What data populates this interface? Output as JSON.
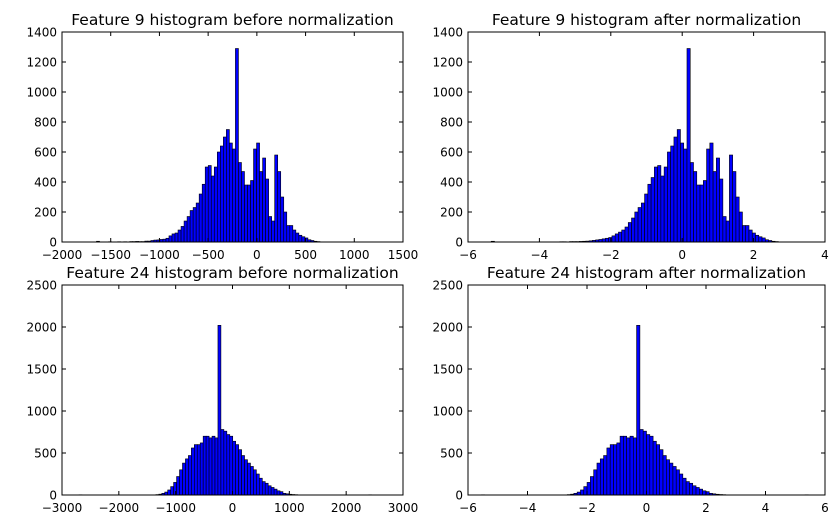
{
  "chart_data": [
    {
      "type": "bar",
      "title": "Feature 9 histogram before normalization",
      "xlim": [
        -2000,
        1500
      ],
      "ylim": [
        0,
        1400
      ],
      "xticks": [
        -2000,
        -1500,
        -1000,
        -500,
        0,
        500,
        1000,
        1500
      ],
      "yticks": [
        0,
        200,
        400,
        600,
        800,
        1000,
        1200,
        1400
      ],
      "grid": false,
      "bin_start": -1770,
      "bin_width": 31,
      "values": [
        1,
        0,
        0,
        0,
        5,
        0,
        0,
        0,
        2,
        0,
        0,
        2,
        0,
        2,
        0,
        3,
        3,
        4,
        3,
        3,
        6,
        6,
        10,
        13,
        14,
        17,
        19,
        25,
        41,
        54,
        60,
        80,
        104,
        140,
        170,
        210,
        230,
        260,
        320,
        385,
        500,
        510,
        440,
        500,
        600,
        640,
        700,
        750,
        660,
        620,
        1290,
        530,
        470,
        380,
        380,
        410,
        620,
        660,
        470,
        560,
        420,
        170,
        140,
        580,
        470,
        300,
        200,
        110,
        110,
        80,
        60,
        45,
        35,
        27,
        15,
        10,
        5,
        3,
        1,
        0,
        0,
        0,
        0,
        0,
        0,
        0,
        0,
        0,
        0,
        0,
        0,
        0,
        0
      ]
    },
    {
      "type": "bar",
      "title": "Feature 9 histogram after normalization",
      "xlim": [
        -6,
        4
      ],
      "ylim": [
        0,
        1400
      ],
      "xticks": [
        -6,
        -4,
        -2,
        0,
        2,
        4
      ],
      "yticks": [
        0,
        200,
        400,
        600,
        800,
        1000,
        1200,
        1400
      ],
      "grid": false,
      "bin_start": -5.35,
      "bin_width": 0.0914,
      "values": [
        5,
        0,
        0,
        0,
        0,
        0,
        0,
        0,
        0,
        0,
        0,
        0,
        0,
        0,
        0,
        0,
        0,
        0,
        0,
        0,
        0,
        2,
        2,
        0,
        3,
        3,
        3,
        4,
        5,
        6,
        8,
        11,
        14,
        17,
        21,
        25,
        30,
        41,
        54,
        66,
        80,
        100,
        130,
        160,
        200,
        230,
        260,
        320,
        385,
        430,
        500,
        510,
        440,
        500,
        600,
        640,
        700,
        750,
        660,
        620,
        1290,
        530,
        470,
        380,
        380,
        410,
        620,
        660,
        470,
        560,
        420,
        170,
        140,
        580,
        470,
        300,
        200,
        110,
        110,
        80,
        60,
        45,
        35,
        27,
        15,
        10,
        5,
        3,
        1,
        0,
        0,
        0
      ]
    },
    {
      "type": "bar",
      "title": "Feature 24 histogram before normalization",
      "xlim": [
        -3000,
        3000
      ],
      "ylim": [
        0,
        2500
      ],
      "xticks": [
        -3000,
        -2000,
        -1000,
        0,
        1000,
        2000,
        3000
      ],
      "yticks": [
        0,
        500,
        1000,
        1500,
        2000,
        2500
      ],
      "grid": false,
      "bin_start": -2700,
      "bin_width": 52,
      "values": [
        3,
        0,
        0,
        0,
        0,
        0,
        0,
        0,
        0,
        0,
        0,
        0,
        0,
        0,
        0,
        0,
        0,
        0,
        0,
        0,
        0,
        0,
        0,
        0,
        0,
        2,
        5,
        10,
        20,
        35,
        60,
        100,
        150,
        220,
        300,
        380,
        430,
        470,
        560,
        600,
        600,
        620,
        700,
        700,
        680,
        700,
        680,
        2020,
        780,
        760,
        720,
        700,
        640,
        600,
        540,
        470,
        420,
        380,
        340,
        300,
        250,
        200,
        160,
        140,
        110,
        90,
        70,
        50,
        40,
        20,
        14,
        9,
        6,
        4,
        2,
        1,
        1,
        0,
        0,
        0,
        0,
        0,
        0,
        0,
        0,
        0,
        0,
        0,
        0,
        0,
        0,
        0,
        0,
        0,
        0,
        0,
        0,
        0,
        3
      ]
    },
    {
      "type": "bar",
      "title": "Feature 24 histogram after normalization",
      "xlim": [
        -6,
        6
      ],
      "ylim": [
        0,
        2500
      ],
      "xticks": [
        -6,
        -4,
        -2,
        0,
        2,
        4,
        6
      ],
      "yticks": [
        0,
        500,
        1000,
        1500,
        2000,
        2500
      ],
      "grid": false,
      "bin_start": -5.55,
      "bin_width": 0.111,
      "values": [
        3,
        0,
        0,
        0,
        0,
        0,
        0,
        0,
        0,
        0,
        0,
        0,
        0,
        0,
        0,
        0,
        0,
        0,
        0,
        0,
        0,
        0,
        0,
        0,
        0,
        2,
        5,
        10,
        20,
        35,
        60,
        100,
        150,
        220,
        300,
        380,
        430,
        470,
        560,
        600,
        600,
        620,
        700,
        700,
        680,
        700,
        680,
        2020,
        780,
        760,
        720,
        700,
        640,
        600,
        540,
        470,
        420,
        380,
        340,
        300,
        250,
        200,
        160,
        140,
        110,
        90,
        70,
        50,
        40,
        20,
        14,
        9,
        6,
        4,
        2,
        1,
        1,
        0,
        0,
        0,
        0,
        0,
        0,
        0,
        0,
        0,
        0,
        0,
        0,
        0,
        0,
        0,
        0,
        0,
        0,
        0,
        0,
        0,
        3
      ]
    }
  ],
  "colors": {
    "bar_fill": "#0000ff",
    "bar_edge": "#000000",
    "background": "#ffffff"
  }
}
